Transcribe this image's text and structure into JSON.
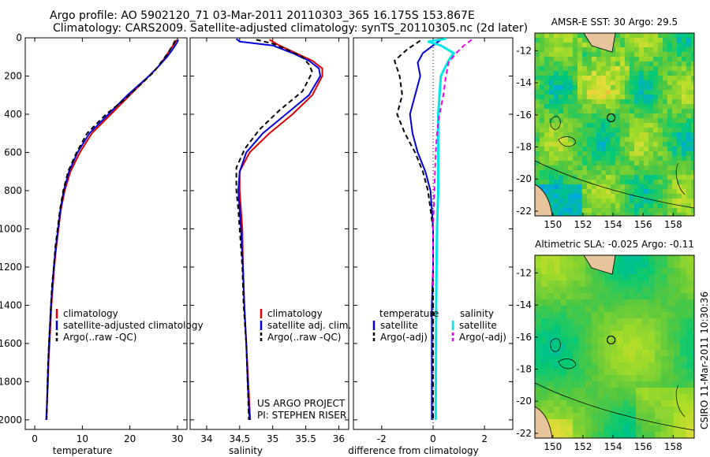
{
  "title": {
    "line1": "Argo profile: AO 5902120_71 03-Mar-2011 20110303_365 16.175S 153.867E",
    "line2": "Climatology: CARS2009. Satellite-adjusted climatology: synTS_20110305.nc (2d later)"
  },
  "side_label": "CSIRO 11-Mar-2011 10:30:36",
  "project": {
    "line1": "US ARGO PROJECT",
    "line2": "PI: STEPHEN RISER"
  },
  "colors": {
    "climatology": "#dd0000",
    "satellite": "#0000dd",
    "argo": "#000000",
    "sat_salinity": "#00e5e5",
    "argo_salinity": "#ee00ee"
  },
  "chart_data": [
    {
      "type": "line",
      "xlabel": "temperature",
      "xlim": [
        -2,
        32
      ],
      "ylim": [
        2050,
        0
      ],
      "xticks": [
        0,
        10,
        20,
        30
      ],
      "yticks": [
        0,
        200,
        400,
        600,
        800,
        1000,
        1200,
        1400,
        1600,
        1800,
        2000
      ],
      "legend": [
        "climatology",
        "satellite-adjusted climatology",
        "Argo(..raw -QC)"
      ],
      "series": [
        {
          "name": "climatology",
          "color": "#dd0000",
          "dash": "",
          "points": [
            [
              29.8,
              10
            ],
            [
              29.4,
              30
            ],
            [
              28.5,
              60
            ],
            [
              27.5,
              100
            ],
            [
              26.0,
              150
            ],
            [
              24.0,
              200
            ],
            [
              20.0,
              300
            ],
            [
              16.0,
              400
            ],
            [
              12.0,
              500
            ],
            [
              9.5,
              600
            ],
            [
              7.5,
              700
            ],
            [
              6.3,
              800
            ],
            [
              5.5,
              900
            ],
            [
              5.0,
              1000
            ],
            [
              4.5,
              1100
            ],
            [
              4.1,
              1200
            ],
            [
              3.8,
              1300
            ],
            [
              3.5,
              1400
            ],
            [
              3.3,
              1500
            ],
            [
              3.1,
              1600
            ],
            [
              2.9,
              1700
            ],
            [
              2.8,
              1800
            ],
            [
              2.6,
              1900
            ],
            [
              2.5,
              2000
            ]
          ]
        },
        {
          "name": "satellite-adjusted climatology",
          "color": "#0000dd",
          "dash": "",
          "points": [
            [
              30.2,
              10
            ],
            [
              29.8,
              30
            ],
            [
              29.0,
              60
            ],
            [
              27.8,
              100
            ],
            [
              26.0,
              150
            ],
            [
              24.0,
              200
            ],
            [
              19.5,
              300
            ],
            [
              15.5,
              400
            ],
            [
              11.5,
              500
            ],
            [
              9.0,
              600
            ],
            [
              7.2,
              700
            ],
            [
              6.1,
              800
            ],
            [
              5.4,
              900
            ],
            [
              4.9,
              1000
            ],
            [
              4.4,
              1100
            ],
            [
              4.0,
              1200
            ],
            [
              3.7,
              1300
            ],
            [
              3.4,
              1400
            ],
            [
              3.2,
              1500
            ],
            [
              3.0,
              1600
            ],
            [
              2.85,
              1700
            ],
            [
              2.7,
              1800
            ],
            [
              2.6,
              1900
            ],
            [
              2.4,
              2000
            ]
          ]
        },
        {
          "name": "Argo(..raw -QC)",
          "color": "#000000",
          "dash": "6,4",
          "points": [
            [
              29.5,
              15
            ],
            [
              29.0,
              40
            ],
            [
              28.0,
              80
            ],
            [
              26.5,
              130
            ],
            [
              25.0,
              180
            ],
            [
              22.0,
              250
            ],
            [
              19.0,
              320
            ],
            [
              15.0,
              400
            ],
            [
              11.0,
              500
            ],
            [
              8.8,
              600
            ],
            [
              7.0,
              700
            ],
            [
              6.0,
              800
            ],
            [
              5.3,
              900
            ],
            [
              4.8,
              1000
            ],
            [
              4.3,
              1100
            ],
            [
              4.0,
              1200
            ],
            [
              3.6,
              1300
            ],
            [
              3.4,
              1400
            ],
            [
              3.2,
              1500
            ],
            [
              3.0,
              1600
            ],
            [
              2.8,
              1700
            ],
            [
              2.7,
              1800
            ],
            [
              2.6,
              1900
            ],
            [
              2.5,
              1990
            ]
          ]
        }
      ]
    },
    {
      "type": "line",
      "xlabel": "salinity",
      "xlim": [
        33.75,
        36.15
      ],
      "ylim": [
        2050,
        0
      ],
      "xticks": [
        34,
        34.5,
        35,
        35.5,
        36
      ],
      "legend": [
        "climatology",
        "satellite adj. clim.",
        "Argo(..raw -QC)"
      ],
      "series": [
        {
          "name": "climatology",
          "color": "#dd0000",
          "dash": "",
          "points": [
            [
              34.95,
              10
            ],
            [
              35.1,
              40
            ],
            [
              35.35,
              80
            ],
            [
              35.6,
              120
            ],
            [
              35.75,
              160
            ],
            [
              35.75,
              200
            ],
            [
              35.6,
              300
            ],
            [
              35.3,
              400
            ],
            [
              34.95,
              500
            ],
            [
              34.65,
              600
            ],
            [
              34.5,
              700
            ],
            [
              34.5,
              800
            ],
            [
              34.52,
              900
            ],
            [
              34.54,
              1000
            ],
            [
              34.55,
              1200
            ],
            [
              34.57,
              1400
            ],
            [
              34.6,
              1600
            ],
            [
              34.63,
              1800
            ],
            [
              34.66,
              2000
            ]
          ]
        },
        {
          "name": "satellite adj. clim.",
          "color": "#0000dd",
          "dash": "",
          "points": [
            [
              34.45,
              5
            ],
            [
              34.5,
              20
            ],
            [
              35.0,
              40
            ],
            [
              35.3,
              80
            ],
            [
              35.55,
              120
            ],
            [
              35.7,
              160
            ],
            [
              35.72,
              200
            ],
            [
              35.55,
              300
            ],
            [
              35.2,
              400
            ],
            [
              34.85,
              500
            ],
            [
              34.6,
              600
            ],
            [
              34.5,
              700
            ],
            [
              34.48,
              800
            ],
            [
              34.5,
              900
            ],
            [
              34.52,
              1000
            ],
            [
              34.55,
              1200
            ],
            [
              34.57,
              1400
            ],
            [
              34.6,
              1600
            ],
            [
              34.62,
              1800
            ],
            [
              34.65,
              2000
            ]
          ]
        },
        {
          "name": "Argo(..raw -QC)",
          "color": "#000000",
          "dash": "6,4",
          "points": [
            [
              34.75,
              10
            ],
            [
              35.0,
              30
            ],
            [
              35.2,
              60
            ],
            [
              35.45,
              100
            ],
            [
              35.55,
              140
            ],
            [
              35.6,
              180
            ],
            [
              35.45,
              280
            ],
            [
              35.1,
              380
            ],
            [
              34.8,
              480
            ],
            [
              34.58,
              580
            ],
            [
              34.45,
              680
            ],
            [
              34.45,
              800
            ],
            [
              34.48,
              900
            ],
            [
              34.5,
              1000
            ],
            [
              34.54,
              1200
            ],
            [
              34.56,
              1400
            ],
            [
              34.6,
              1600
            ],
            [
              34.62,
              1800
            ],
            [
              34.64,
              2000
            ]
          ]
        }
      ]
    },
    {
      "type": "line",
      "xlabel": "difference from climatology",
      "xlim": [
        -3.1,
        3.1
      ],
      "ylim": [
        2050,
        0
      ],
      "xticks": [
        -2,
        0,
        2
      ],
      "legend_left_title": "temperature",
      "legend_right_title": "salinity",
      "legend_left": [
        "satellite",
        "Argo(-adj)"
      ],
      "legend_right": [
        "satellite",
        "Argo(-adj)"
      ],
      "series": [
        {
          "name": "temperature satellite",
          "color": "#0000dd",
          "dash": "",
          "points": [
            [
              0.3,
              10
            ],
            [
              0.0,
              40
            ],
            [
              -0.4,
              80
            ],
            [
              -0.6,
              130
            ],
            [
              -0.5,
              200
            ],
            [
              -0.7,
              300
            ],
            [
              -0.9,
              400
            ],
            [
              -0.8,
              500
            ],
            [
              -0.6,
              600
            ],
            [
              -0.3,
              700
            ],
            [
              -0.1,
              800
            ],
            [
              -0.05,
              900
            ],
            [
              0.0,
              1000
            ],
            [
              0.0,
              1200
            ],
            [
              -0.05,
              1400
            ],
            [
              -0.05,
              1600
            ],
            [
              -0.05,
              1800
            ],
            [
              -0.05,
              2000
            ]
          ]
        },
        {
          "name": "temperature Argo(-adj)",
          "color": "#000000",
          "dash": "6,4",
          "points": [
            [
              -0.5,
              15
            ],
            [
              -1.0,
              60
            ],
            [
              -1.5,
              120
            ],
            [
              -1.3,
              200
            ],
            [
              -1.2,
              300
            ],
            [
              -1.4,
              400
            ],
            [
              -1.1,
              500
            ],
            [
              -0.7,
              600
            ],
            [
              -0.4,
              700
            ],
            [
              -0.2,
              800
            ],
            [
              -0.1,
              900
            ],
            [
              0.0,
              1000
            ],
            [
              0.0,
              1200
            ],
            [
              0.0,
              1400
            ],
            [
              0.0,
              1600
            ],
            [
              0.0,
              1800
            ],
            [
              0.0,
              2000
            ]
          ]
        },
        {
          "name": "salinity satellite",
          "color": "#00e5e5",
          "dash": "",
          "points": [
            [
              0.5,
              5
            ],
            [
              -0.2,
              20
            ],
            [
              0.3,
              40
            ],
            [
              0.8,
              80
            ],
            [
              0.6,
              120
            ],
            [
              0.3,
              200
            ],
            [
              0.25,
              300
            ],
            [
              0.2,
              400
            ],
            [
              0.2,
              600
            ],
            [
              0.2,
              800
            ],
            [
              0.15,
              1000
            ],
            [
              0.12,
              1400
            ],
            [
              0.1,
              2000
            ]
          ]
        },
        {
          "name": "salinity Argo(-adj)",
          "color": "#ee00ee",
          "dash": "6,4",
          "points": [
            [
              1.5,
              10
            ],
            [
              1.2,
              40
            ],
            [
              0.9,
              80
            ],
            [
              0.6,
              130
            ],
            [
              0.5,
              200
            ],
            [
              0.4,
              300
            ],
            [
              0.25,
              400
            ],
            [
              0.15,
              500
            ],
            [
              0.1,
              600
            ],
            [
              0.05,
              800
            ],
            [
              0.0,
              1000
            ],
            [
              0.0,
              1300
            ]
          ]
        }
      ]
    }
  ],
  "maps": [
    {
      "title": "AMSR-E SST: 30 Argo: 29.5",
      "xticks": [
        150,
        152,
        154,
        156,
        158
      ],
      "yticks": [
        -12,
        -14,
        -16,
        -18,
        -20,
        -22
      ],
      "xlim": [
        148.8,
        159.4
      ],
      "ylim": [
        -10.9,
        -22.3
      ],
      "marker": {
        "lon": 153.87,
        "lat": -16.18
      }
    },
    {
      "title": "Altimetric SLA: -0.025 Argo: -0.11",
      "xticks": [
        150,
        152,
        154,
        156,
        158
      ],
      "yticks": [
        -12,
        -14,
        -16,
        -18,
        -20,
        -22
      ],
      "xlim": [
        148.8,
        159.4
      ],
      "ylim": [
        -10.9,
        -22.3
      ],
      "marker": {
        "lon": 153.87,
        "lat": -16.18
      }
    }
  ]
}
